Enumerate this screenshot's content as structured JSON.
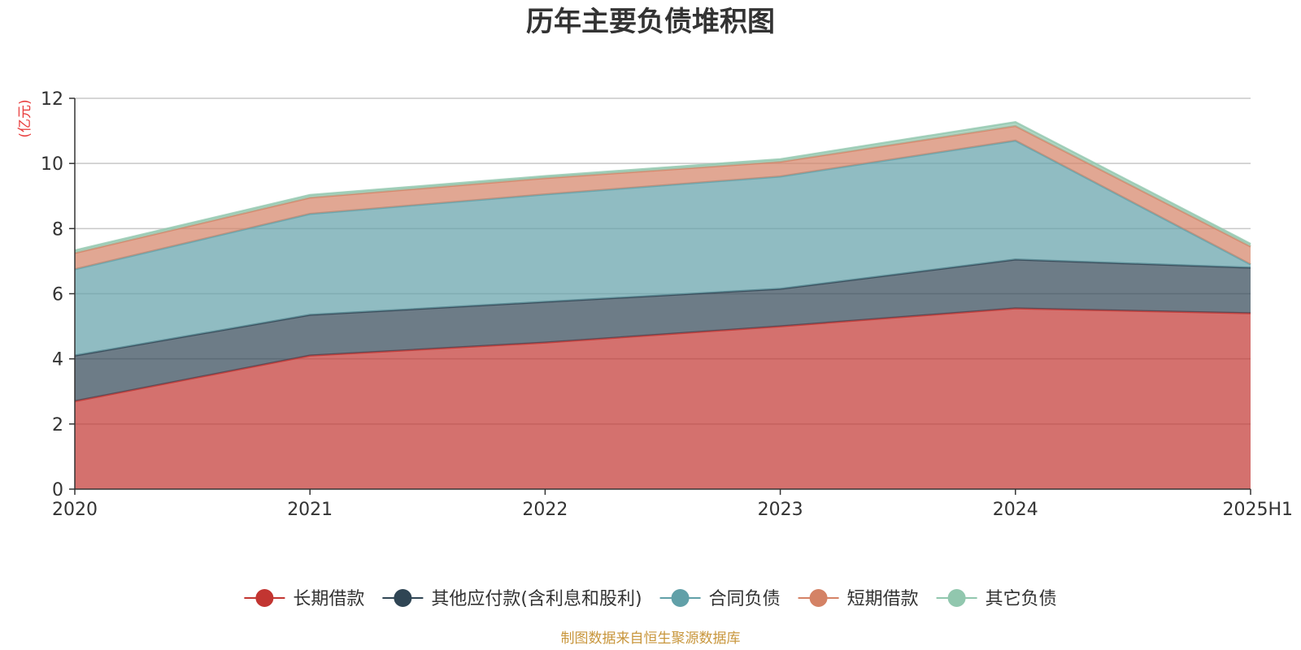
{
  "chart_data": {
    "type": "area",
    "stacked": true,
    "title": "历年主要负债堆积图",
    "unit_label": "(亿元)",
    "source_label": "制图数据来自恒生聚源数据库",
    "categories": [
      "2020",
      "2021",
      "2022",
      "2023",
      "2024",
      "2025H1"
    ],
    "ylim": [
      0,
      12
    ],
    "yticks": [
      "0",
      "2",
      "4",
      "6",
      "8",
      "10",
      "12"
    ],
    "grid": true,
    "legend_position": "bottom-center",
    "series": [
      {
        "name": "长期借款",
        "color": "#c23531",
        "values": [
          2.7,
          4.1,
          4.5,
          5.0,
          5.55,
          5.4
        ]
      },
      {
        "name": "其他应付款(含利息和股利)",
        "color": "#2f4554",
        "values": [
          1.4,
          1.25,
          1.25,
          1.15,
          1.5,
          1.4
        ]
      },
      {
        "name": "合同负债",
        "color": "#61a0a8",
        "values": [
          2.65,
          3.1,
          3.3,
          3.45,
          3.65,
          0.1
        ]
      },
      {
        "name": "短期借款",
        "color": "#d48265",
        "values": [
          0.5,
          0.5,
          0.5,
          0.45,
          0.45,
          0.55
        ]
      },
      {
        "name": "其它负债",
        "color": "#91c7ae",
        "values": [
          0.08,
          0.08,
          0.06,
          0.08,
          0.12,
          0.08
        ]
      }
    ]
  }
}
